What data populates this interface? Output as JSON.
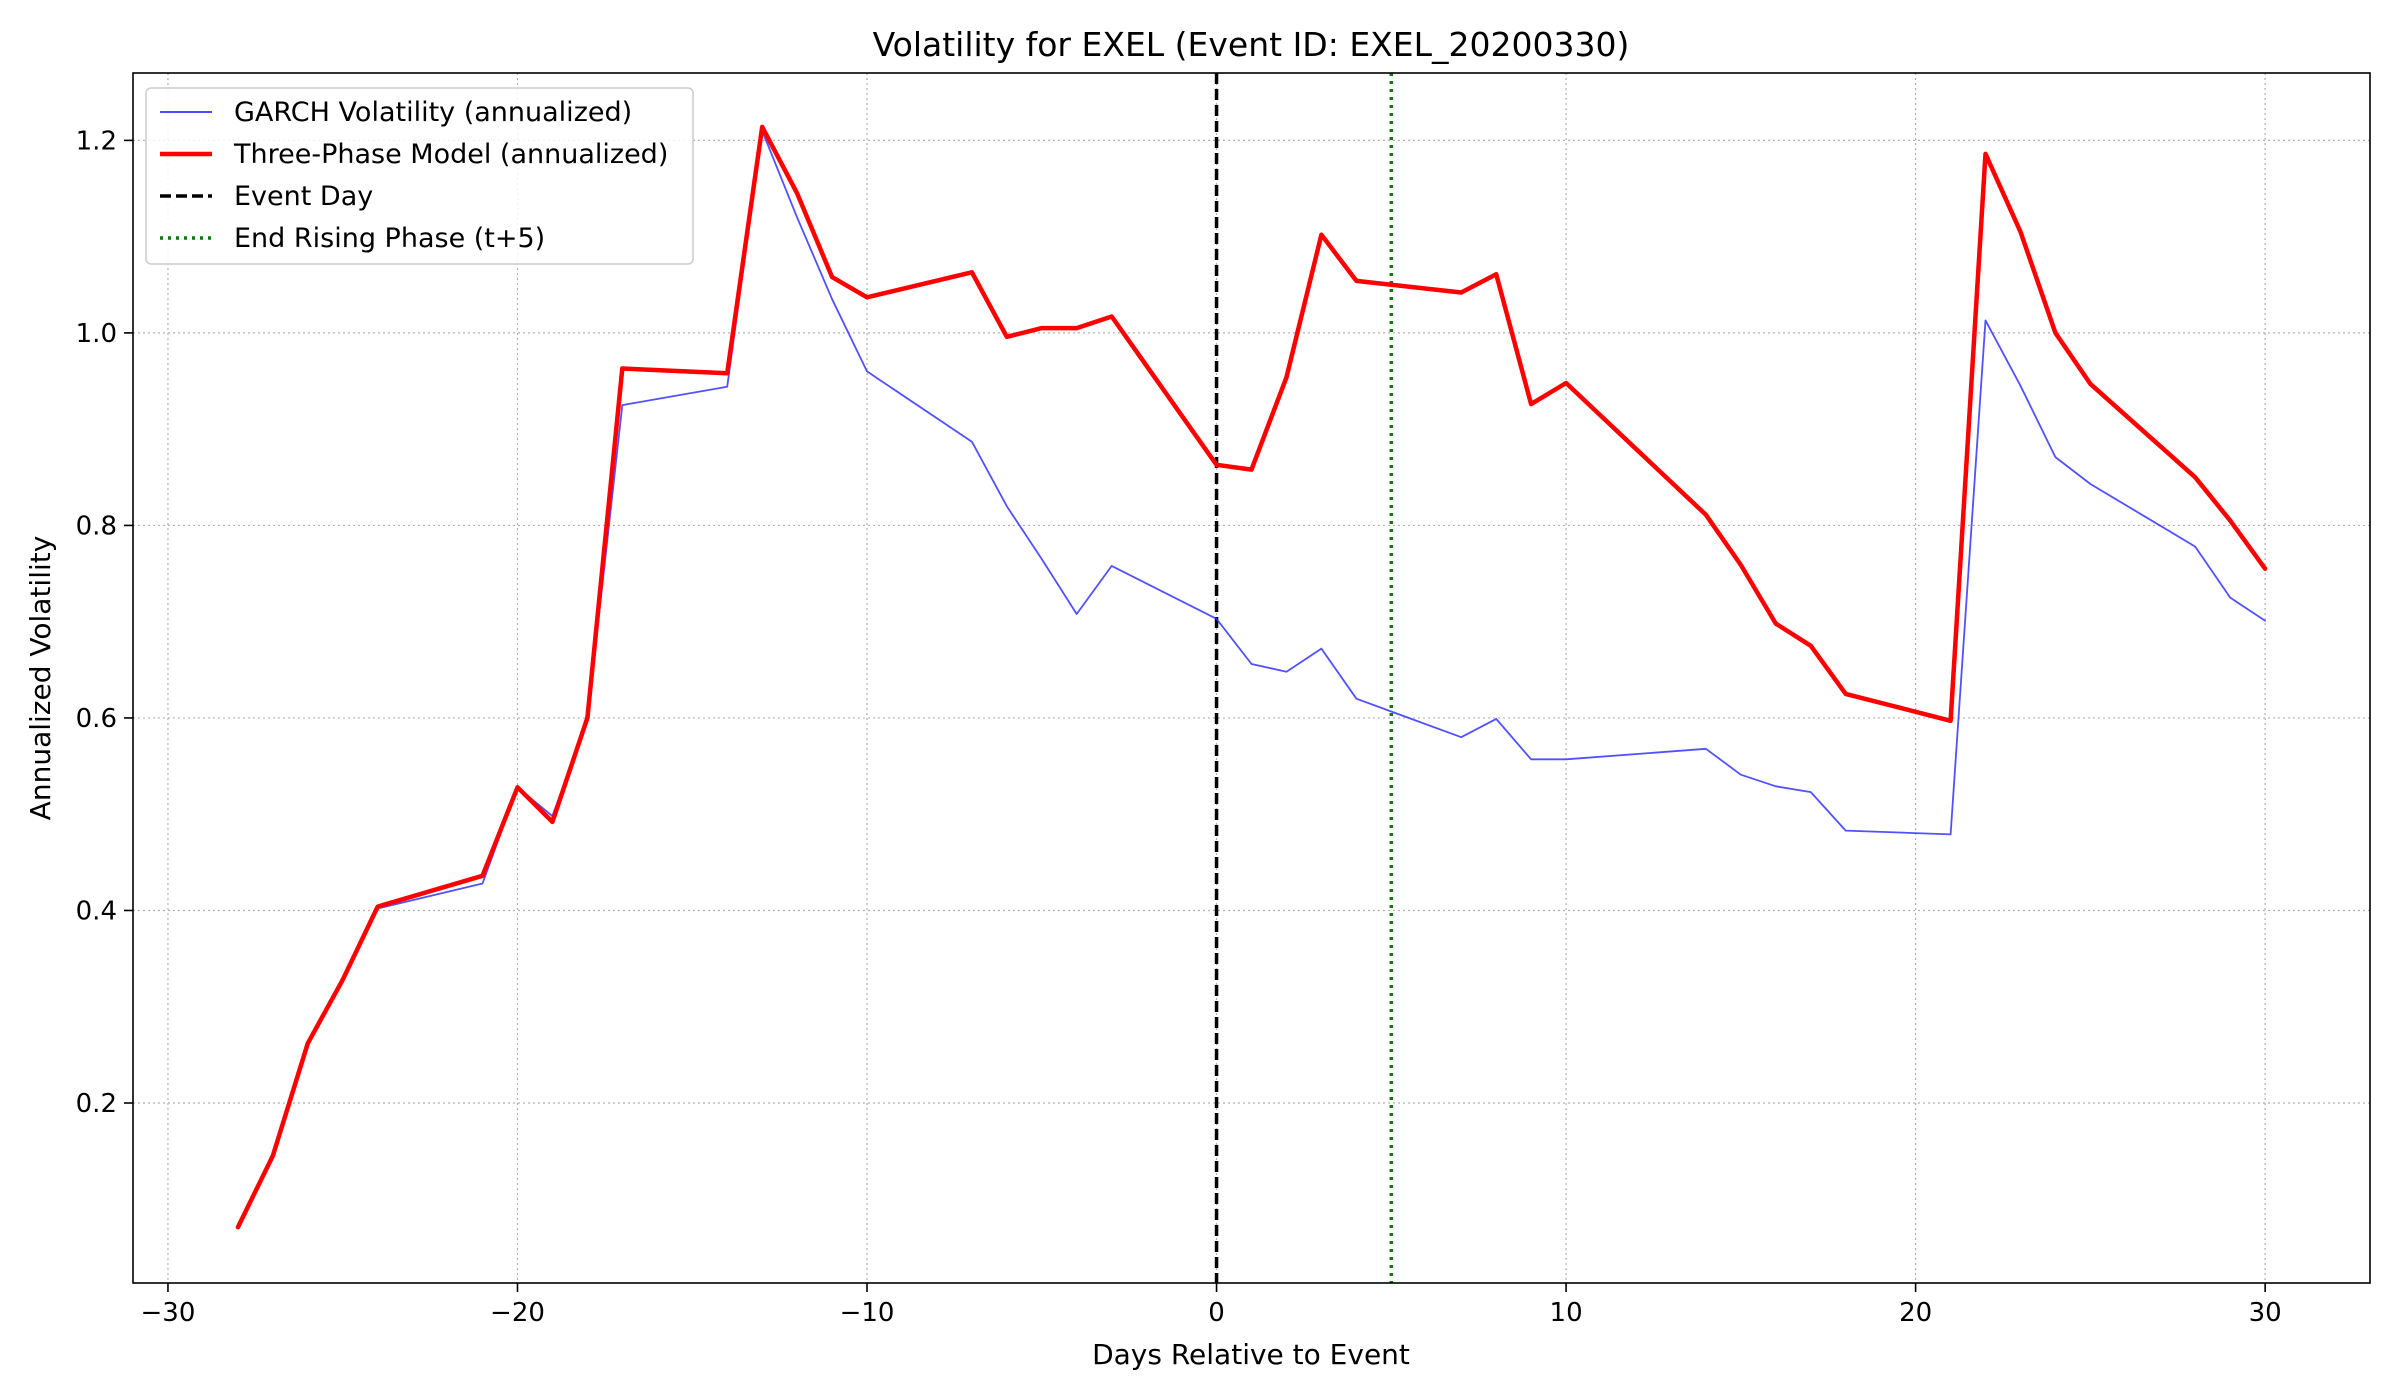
{
  "chart_data": {
    "type": "line",
    "title": "Volatility for EXEL (Event ID: EXEL_20200330)",
    "xlabel": "Days Relative to Event",
    "ylabel": "Annualized Volatility",
    "xlim": [
      -31,
      33
    ],
    "ylim": [
      0.013,
      1.27
    ],
    "xticks": [
      -30,
      -20,
      -10,
      0,
      10,
      20,
      30
    ],
    "xtick_labels": [
      "−30",
      "−20",
      "−10",
      "0",
      "10",
      "20",
      "30"
    ],
    "yticks": [
      0.2,
      0.4,
      0.6,
      0.8,
      1.0,
      1.2
    ],
    "ytick_labels": [
      "0.2",
      "0.4",
      "0.6",
      "0.8",
      "1.0",
      "1.2"
    ],
    "grid": true,
    "legend_position": "top-left",
    "series": [
      {
        "name": "GARCH Volatility (annualized)",
        "color": "#3333ff",
        "style": "solid",
        "x": [
          -28,
          -27,
          -26,
          -25,
          -24,
          -21,
          -20,
          -19,
          -18,
          -17,
          -14,
          -13,
          -12,
          -11,
          -10,
          -7,
          -6,
          -5,
          -4,
          -3,
          0,
          1,
          2,
          3,
          4,
          7,
          8,
          9,
          10,
          14,
          15,
          16,
          17,
          18,
          21,
          22,
          23,
          24,
          25,
          28,
          29,
          30
        ],
        "y": [
          0.071,
          0.145,
          0.262,
          0.328,
          0.402,
          0.428,
          0.528,
          0.498,
          0.598,
          0.925,
          0.944,
          1.21,
          1.12,
          1.035,
          0.96,
          0.887,
          0.82,
          0.765,
          0.708,
          0.758,
          0.703,
          0.656,
          0.648,
          0.672,
          0.62,
          0.58,
          0.599,
          0.557,
          0.557,
          0.568,
          0.541,
          0.529,
          0.523,
          0.483,
          0.479,
          1.013,
          0.945,
          0.871,
          0.843,
          0.778,
          0.725,
          0.701
        ]
      },
      {
        "name": "Three-Phase Model (annualized)",
        "color": "#ff0000",
        "style": "solid",
        "x": [
          -28,
          -27,
          -26,
          -25,
          -24,
          -21,
          -20,
          -19,
          -18,
          -17,
          -14,
          -13,
          -12,
          -11,
          -10,
          -7,
          -6,
          -5,
          -4,
          -3,
          0,
          1,
          2,
          3,
          4,
          7,
          8,
          9,
          10,
          14,
          15,
          16,
          17,
          18,
          21,
          22,
          23,
          24,
          25,
          28,
          29,
          30
        ],
        "y": [
          0.071,
          0.145,
          0.262,
          0.328,
          0.404,
          0.436,
          0.528,
          0.492,
          0.6,
          0.963,
          0.958,
          1.214,
          1.145,
          1.058,
          1.037,
          1.063,
          0.996,
          1.005,
          1.005,
          1.017,
          0.863,
          0.858,
          0.954,
          1.102,
          1.054,
          1.042,
          1.061,
          0.926,
          0.948,
          0.811,
          0.759,
          0.698,
          0.675,
          0.625,
          0.597,
          1.186,
          1.105,
          1.0,
          0.947,
          0.85,
          0.805,
          0.755
        ]
      }
    ],
    "vlines": [
      {
        "name": "Event Day",
        "x": 0,
        "color": "#000000",
        "style": "dashed"
      },
      {
        "name": "End Rising Phase (t+5)",
        "x": 5,
        "color": "#008000",
        "style": "dotted"
      }
    ]
  }
}
